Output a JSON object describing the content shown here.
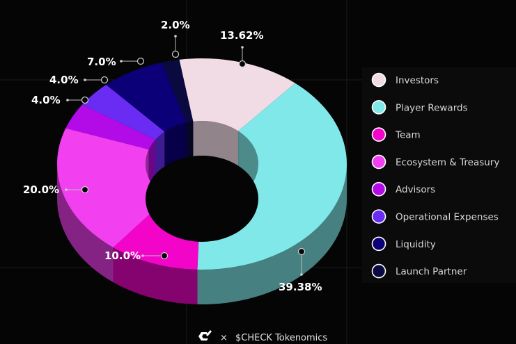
{
  "chart_data": {
    "type": "pie",
    "title": "",
    "slices": [
      {
        "label": "Investors",
        "value": 13.62,
        "display": "13.62%",
        "color": "#f1dce6"
      },
      {
        "label": "Player Rewards",
        "value": 39.38,
        "display": "39.38%",
        "color": "#80e8e8"
      },
      {
        "label": "Team",
        "value": 10.0,
        "display": "10.0%",
        "color": "#f205c8"
      },
      {
        "label": "Ecosystem & Treasury",
        "value": 20.0,
        "display": "20.0%",
        "color": "#f23ff0"
      },
      {
        "label": "Advisors",
        "value": 4.0,
        "display": "4.0%",
        "color": "#b30ae8"
      },
      {
        "label": "Operational Expenses",
        "value": 4.0,
        "display": "4.0%",
        "color": "#6a2cf2"
      },
      {
        "label": "Liquidity",
        "value": 7.0,
        "display": "7.0%",
        "color": "#0b0078"
      },
      {
        "label": "Launch Partner",
        "value": 2.0,
        "display": "2.0%",
        "color": "#0a0a40"
      }
    ],
    "legend_position": "right"
  },
  "footer": {
    "separator": "×",
    "title": "$CHECK Tokenomics",
    "logo_icon": "check-logo-icon"
  }
}
